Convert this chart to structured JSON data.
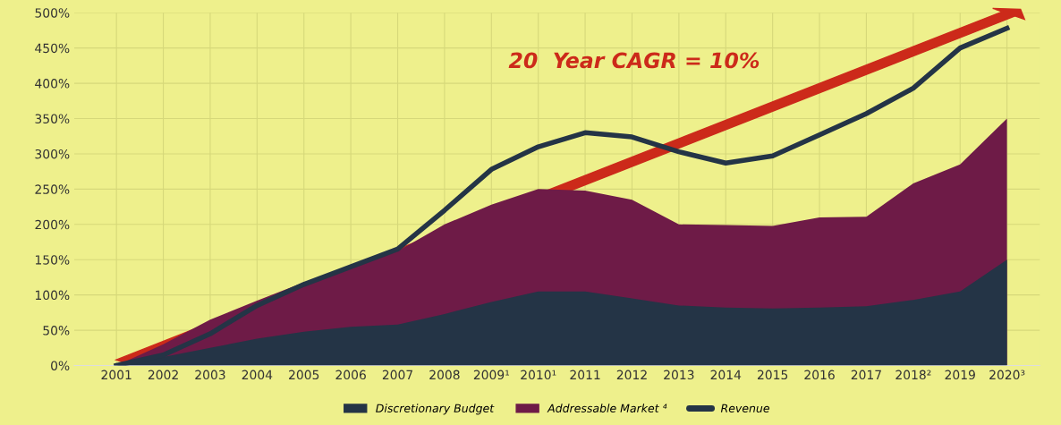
{
  "chart_data": {
    "type": "area",
    "categories": [
      "2001",
      "2002",
      "2003",
      "2004",
      "2005",
      "2006",
      "2007",
      "2008",
      "2009¹",
      "2010¹",
      "2011",
      "2012",
      "2013",
      "2014",
      "2015",
      "2016",
      "2017",
      "2018²",
      "2019",
      "2020³"
    ],
    "series": [
      {
        "name": "Discretionary Budget",
        "color": "#243446",
        "values": [
          0,
          12,
          25,
          38,
          48,
          55,
          58,
          73,
          90,
          105,
          105,
          95,
          85,
          82,
          81,
          82,
          84,
          93,
          105,
          150
        ]
      },
      {
        "name": "Addressable Market ⁴",
        "color": "#6e1b47",
        "values": [
          0,
          30,
          65,
          92,
          118,
          138,
          162,
          200,
          228,
          250,
          248,
          235,
          200,
          199,
          198,
          210,
          211,
          258,
          285,
          350
        ]
      },
      {
        "name": "Revenue",
        "type": "line",
        "color": "#243446",
        "values": [
          0,
          15,
          45,
          85,
          115,
          140,
          165,
          220,
          278,
          310,
          330,
          324,
          303,
          287,
          297,
          327,
          357,
          393,
          450,
          478
        ]
      }
    ],
    "ylim": [
      0,
      500
    ],
    "yticks": [
      {
        "value": 0,
        "label": "0%"
      },
      {
        "value": 50,
        "label": "50%"
      },
      {
        "value": 100,
        "label": "100%"
      },
      {
        "value": 150,
        "label": "150%"
      },
      {
        "value": 200,
        "label": "200%"
      },
      {
        "value": 250,
        "label": "250%"
      },
      {
        "value": 300,
        "label": "300%"
      },
      {
        "value": 350,
        "label": "350%"
      },
      {
        "value": 400,
        "label": "400%"
      },
      {
        "value": 450,
        "label": "450%"
      },
      {
        "value": 500,
        "label": "500%"
      }
    ],
    "annotations": [
      "20  Year CAGR = 10%"
    ],
    "grid": true,
    "legend": "bottom"
  }
}
